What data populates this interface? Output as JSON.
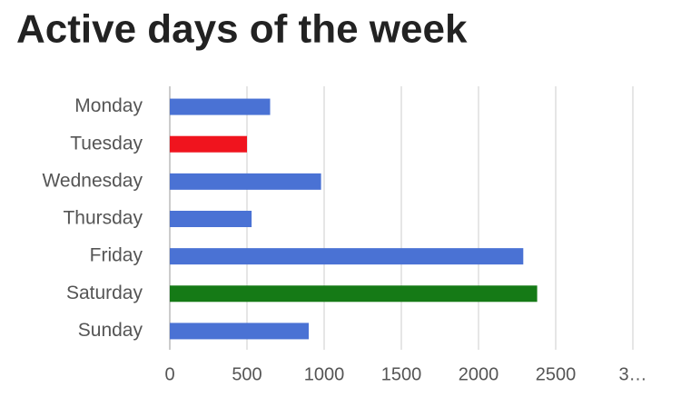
{
  "chart_data": {
    "type": "hbar",
    "title": "Active days of the week",
    "categories": [
      "Monday",
      "Tuesday",
      "Wednesday",
      "Thursday",
      "Friday",
      "Saturday",
      "Sunday"
    ],
    "values": [
      650,
      500,
      980,
      530,
      2290,
      2380,
      900
    ],
    "colors": [
      "#4a72d4",
      "#f0141e",
      "#4a72d4",
      "#4a72d4",
      "#4a72d4",
      "#157a16",
      "#4a72d4"
    ],
    "xlim": [
      0,
      3000
    ],
    "xticks": [
      0,
      500,
      1000,
      1500,
      2000,
      2500,
      {
        "value": 3000,
        "label": "3…"
      }
    ],
    "grid": true
  }
}
